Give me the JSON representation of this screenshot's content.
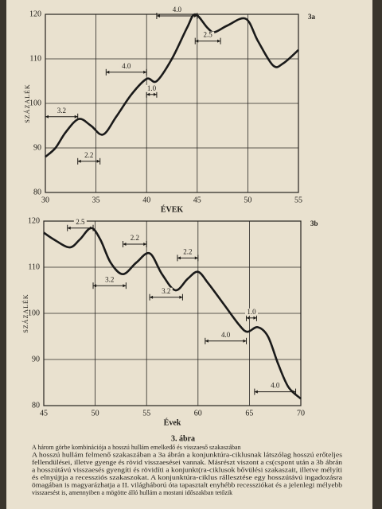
{
  "chart_data": [
    {
      "type": "line",
      "label": "3a",
      "ylabel": "SZÁZALÉK",
      "xlabel": "ÉVEK",
      "x": [
        30,
        31,
        32,
        33.3,
        34.5,
        35.7,
        37,
        38.5,
        40,
        41,
        42.5,
        44,
        44.8,
        46,
        46.7,
        48,
        49.8,
        51,
        52.5,
        53.5,
        55
      ],
      "values": [
        88,
        90,
        93.5,
        96.5,
        95,
        93,
        97,
        102,
        105.5,
        105,
        110,
        117,
        120,
        117,
        116,
        117.5,
        119,
        114,
        108.5,
        109,
        112
      ],
      "color": "#1a1a1a",
      "xlim": [
        30,
        55
      ],
      "ylim": [
        80,
        120
      ],
      "xticks": [
        30,
        35,
        40,
        45,
        50,
        55
      ],
      "yticks": [
        80,
        90,
        100,
        110,
        120
      ],
      "grid": true,
      "annotations": [
        {
          "label": "3.2",
          "from": 30,
          "to": 33.2,
          "y": 97
        },
        {
          "label": "2.2",
          "from": 33.2,
          "to": 35.4,
          "y": 87
        },
        {
          "label": "4.0",
          "from": 36,
          "to": 40,
          "y": 107
        },
        {
          "label": "1.0",
          "from": 40,
          "to": 41,
          "y": 102
        },
        {
          "label": "4.0",
          "from": 41,
          "to": 45,
          "y": 122
        },
        {
          "label": "2.5",
          "from": 44.8,
          "to": 47.3,
          "y": 114
        }
      ]
    },
    {
      "type": "line",
      "label": "3b",
      "ylabel": "SZÁZALÉK",
      "xlabel": "Évek",
      "x": [
        45,
        46,
        47.5,
        48.5,
        49.6,
        50.5,
        51.5,
        52.7,
        54,
        55.3,
        56.5,
        57.8,
        59,
        60,
        61,
        62.5,
        64,
        64.8,
        65.8,
        66.8,
        67.8,
        68.8,
        70
      ],
      "values": [
        117.5,
        116,
        114.3,
        116,
        118.5,
        116,
        111,
        108.5,
        111,
        113,
        108.5,
        105,
        107.5,
        109,
        106.5,
        102,
        97.5,
        96,
        97,
        95,
        89,
        84,
        81.5
      ],
      "color": "#1a1a1a",
      "xlim": [
        45,
        70
      ],
      "ylim": [
        80,
        120
      ],
      "xticks": [
        45,
        50,
        55,
        60,
        65,
        70
      ],
      "yticks": [
        80,
        90,
        100,
        110,
        120
      ],
      "grid": true,
      "annotations": [
        {
          "label": "2.5",
          "from": 47.3,
          "to": 49.8,
          "y": 118.5
        },
        {
          "label": "3.2",
          "from": 49.8,
          "to": 53,
          "y": 106
        },
        {
          "label": "2.2",
          "from": 52.7,
          "to": 55,
          "y": 115
        },
        {
          "label": "3.2",
          "from": 55.3,
          "to": 58.5,
          "y": 103.5
        },
        {
          "label": "2.2",
          "from": 58,
          "to": 60,
          "y": 112
        },
        {
          "label": "1.0",
          "from": 64.7,
          "to": 65.7,
          "y": 99
        },
        {
          "label": "4.0",
          "from": 60.7,
          "to": 64.7,
          "y": 94
        },
        {
          "label": "4.0",
          "from": 65.5,
          "to": 69.5,
          "y": 83
        }
      ]
    }
  ],
  "figure_label": "3. ábra",
  "caption": [
    "A három görbe kombinációja a hosszú hullám emelkedő és visszaeső szakaszában",
    "A hosszú hullám felmenő szakaszában a 3a ábrán a konjunktúra-ciklusnak látszólag hosszú erőteljes",
    "fellendülései, illetve gyenge és rövid visszaesései vannak. Másrészt viszont a cs(cspont után a 3b ábrán",
    "a hosszútávú visszaesés gyengíti és rövidíti a konjunkt(ra-ciklusok bővülési szakaszait, illetve mélyíti",
    "és elnyújtja a recessziós szakaszokat. A konjunktúra-ciklus rállesztése egy hosszútávú ingadozásra",
    "ömagában is magyarázhatja a II. világháború óta tapasztalt enyhébb recessziókat és a jelenlegi mélyebb",
    "visszaesést is, amennyiben a mögötte álló hullám a mostani időszakban tetőzik"
  ]
}
